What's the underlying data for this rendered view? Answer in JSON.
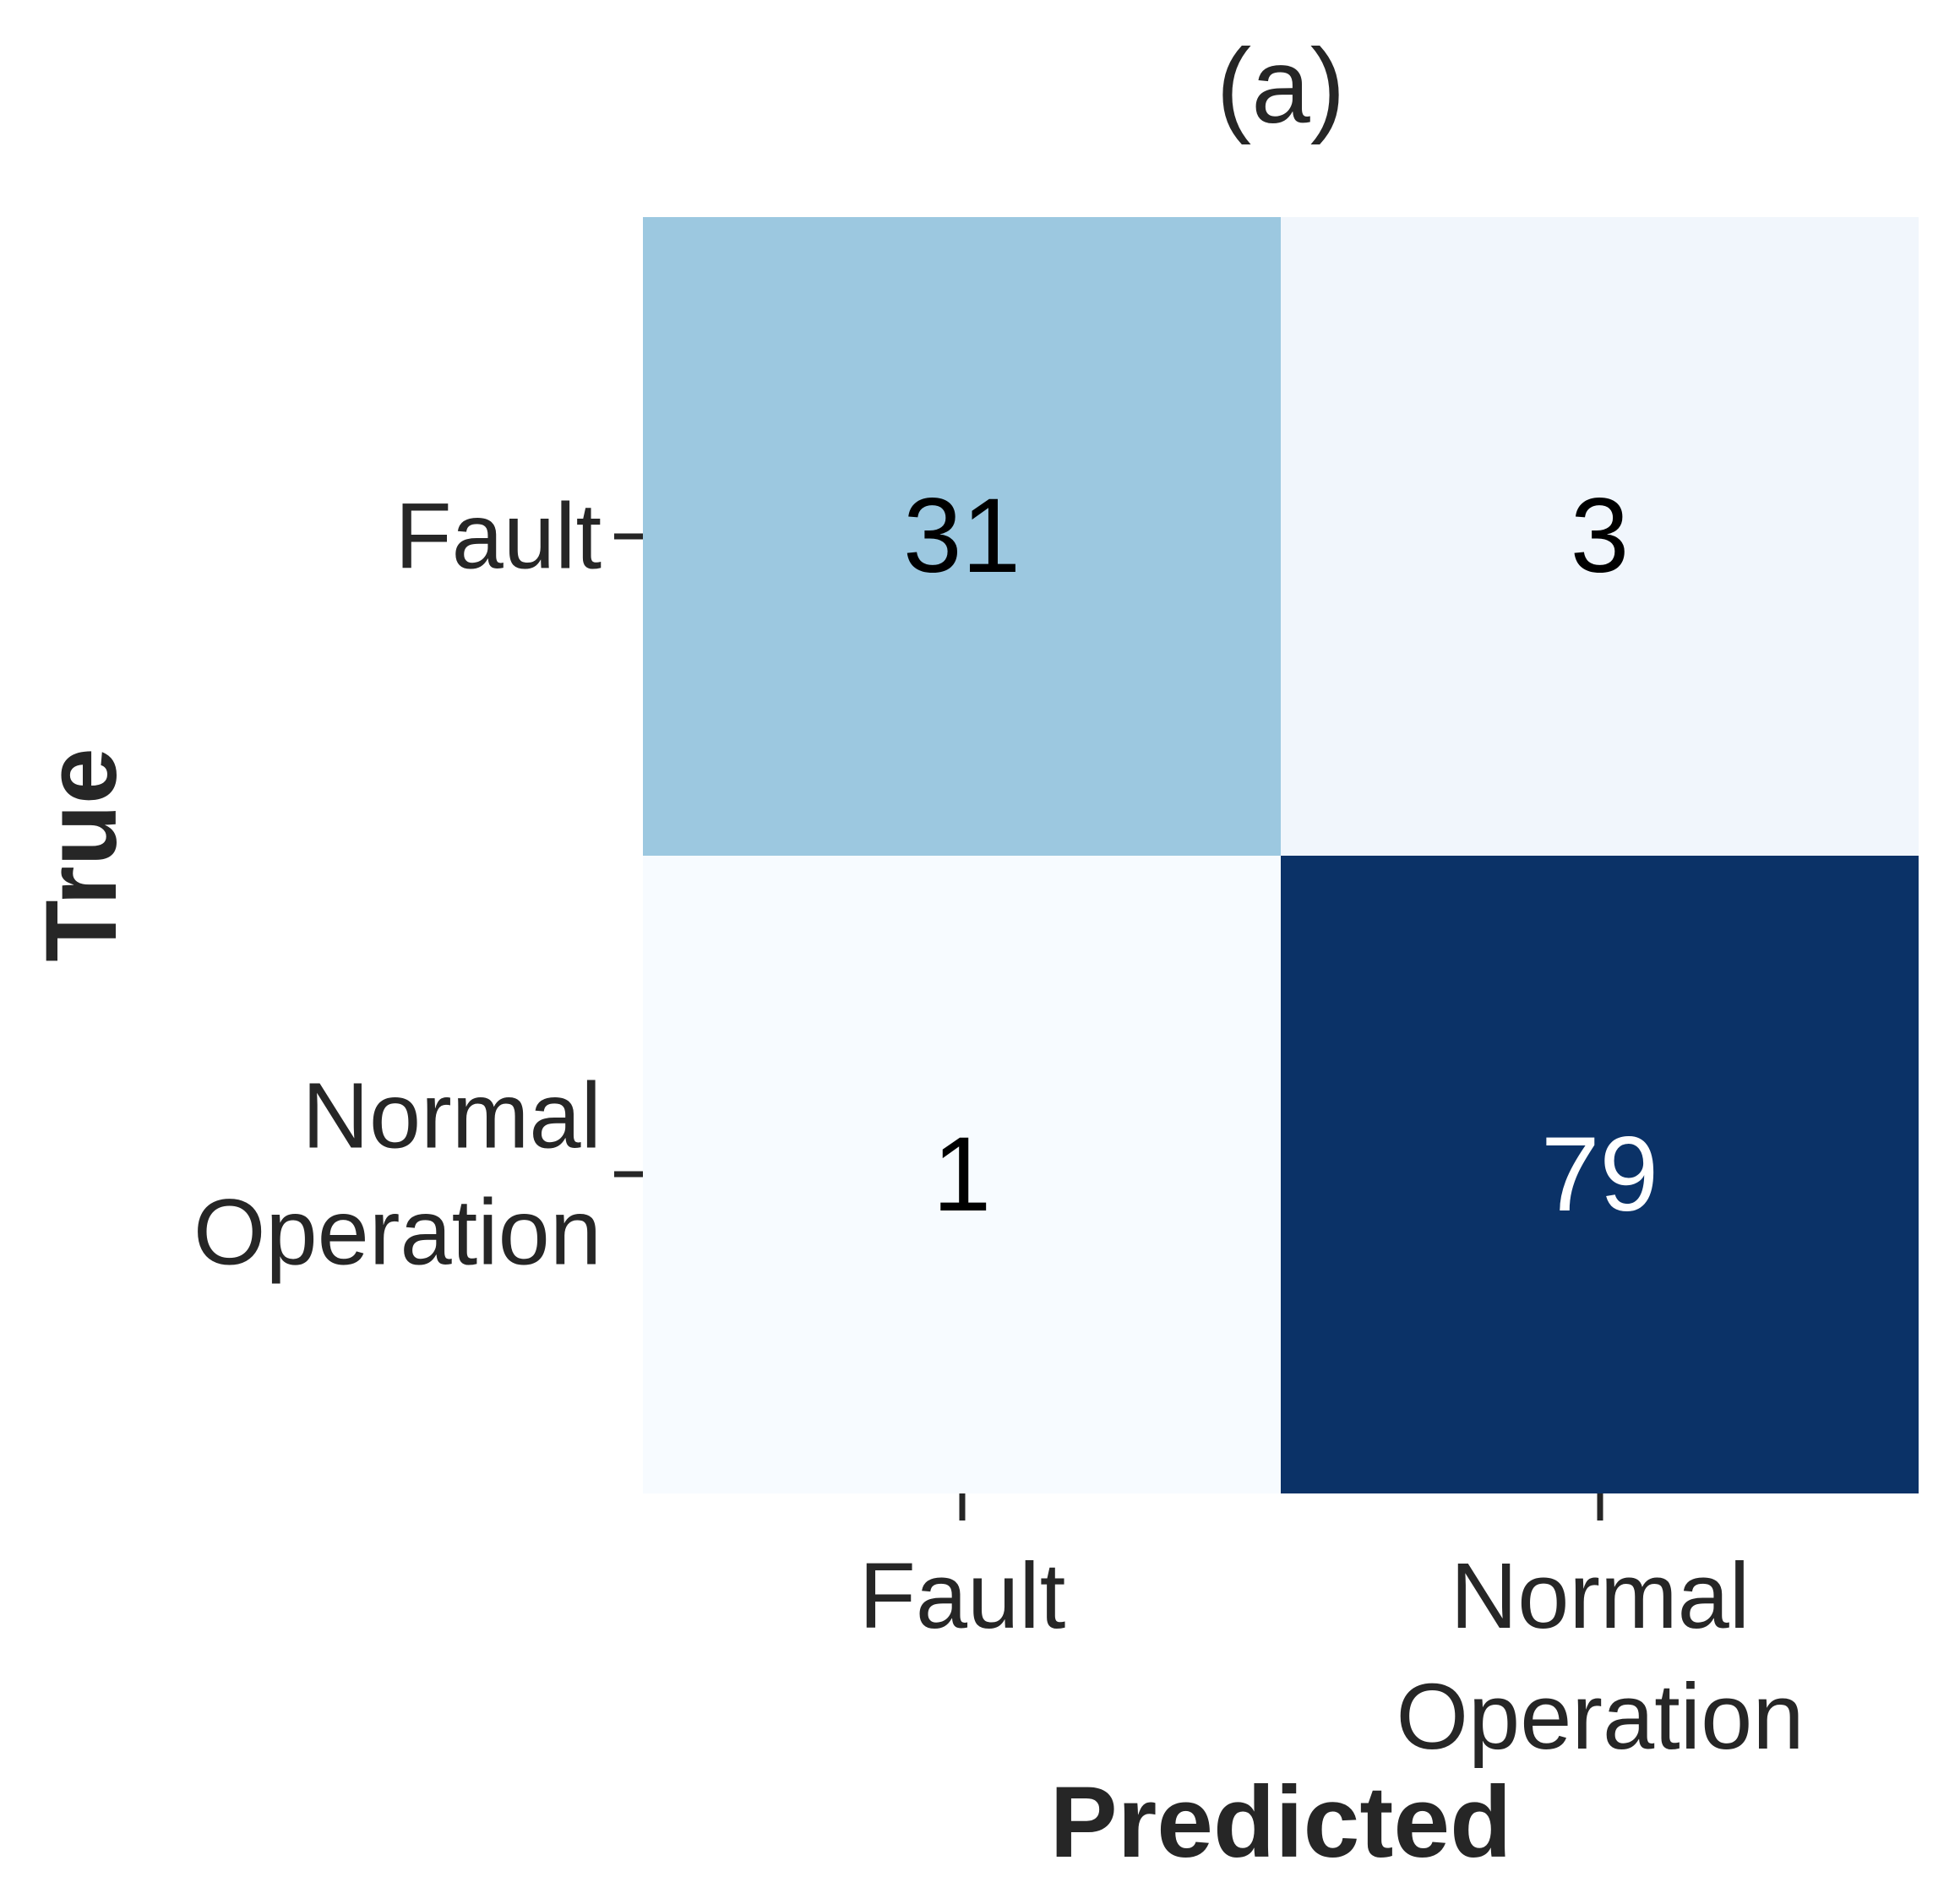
{
  "figure": {
    "background": "#ffffff",
    "text_color": "#262626"
  },
  "chart_data": {
    "type": "heatmap",
    "title": "(a)",
    "xlabel": "Predicted",
    "ylabel": "True",
    "x_categories": [
      "Fault",
      "Normal Operation"
    ],
    "y_categories": [
      "Fault",
      "Normal Operation"
    ],
    "matrix": [
      [
        31,
        3
      ],
      [
        1,
        79
      ]
    ],
    "color_range": [
      1,
      79
    ],
    "colormap": "Blues",
    "cell_colors": [
      [
        "#9cc8e0",
        "#f1f6fc"
      ],
      [
        "#f7fbff",
        "#0b3267"
      ]
    ],
    "cell_text_colors": [
      [
        "#000000",
        "#000000"
      ],
      [
        "#000000",
        "#ffffff"
      ]
    ],
    "grid": false,
    "legend": "none"
  }
}
